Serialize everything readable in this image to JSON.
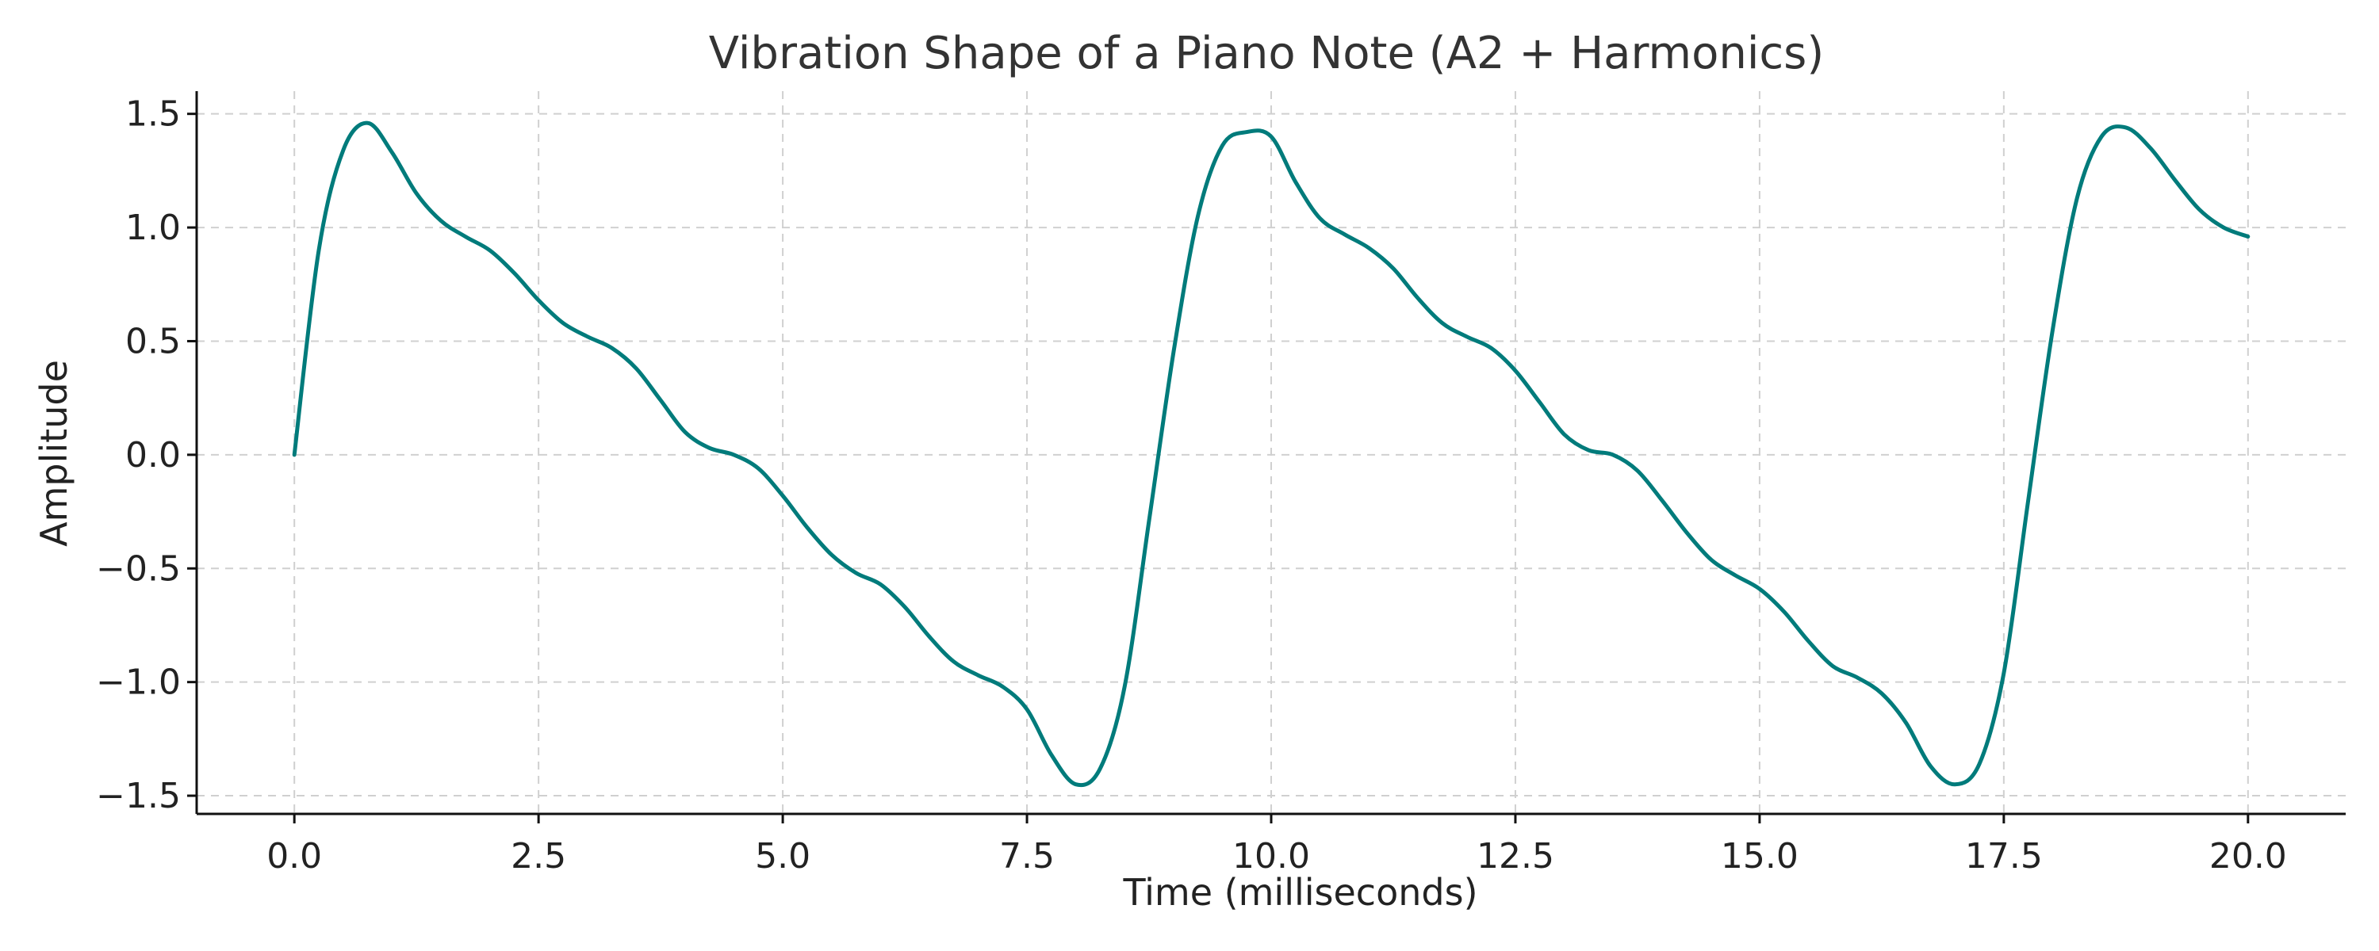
{
  "chart_data": {
    "type": "line",
    "title": "Vibration Shape of a Piano Note (A2 + Harmonics)",
    "xlabel": "Time (milliseconds)",
    "ylabel": "Amplitude",
    "xlim": [
      -1.0,
      21.0
    ],
    "ylim": [
      -1.58,
      1.6
    ],
    "xticks": [
      0.0,
      2.5,
      5.0,
      7.5,
      10.0,
      12.5,
      15.0,
      17.5,
      20.0
    ],
    "xtick_labels": [
      "0.0",
      "2.5",
      "5.0",
      "7.5",
      "10.0",
      "12.5",
      "15.0",
      "17.5",
      "20.0"
    ],
    "yticks": [
      -1.5,
      -1.0,
      -0.5,
      0.0,
      0.5,
      1.0,
      1.5
    ],
    "ytick_labels": [
      "−1.5",
      "−1.0",
      "−0.5",
      "0.0",
      "0.5",
      "1.0",
      "1.5"
    ],
    "grid": true,
    "color": "#007b7b",
    "series": [
      {
        "x": [
          0.0,
          0.25,
          0.5,
          0.75,
          1.0,
          1.25,
          1.5,
          1.75,
          2.0,
          2.25,
          2.5,
          2.75,
          3.0,
          3.25,
          3.5,
          3.75,
          4.0,
          4.25,
          4.5,
          4.75,
          5.0,
          5.25,
          5.5,
          5.75,
          6.0,
          6.25,
          6.5,
          6.75,
          7.0,
          7.25,
          7.5,
          7.75,
          8.0,
          8.25,
          8.5,
          8.75,
          9.0,
          9.25,
          9.5,
          9.75,
          10.0,
          10.25,
          10.5,
          10.75,
          11.0,
          11.25,
          11.5,
          11.75,
          12.0,
          12.25,
          12.5,
          12.75,
          13.0,
          13.25,
          13.5,
          13.75,
          14.0,
          14.25,
          14.5,
          14.75,
          15.0,
          15.25,
          15.5,
          15.75,
          16.0,
          16.25,
          16.5,
          16.75,
          17.0,
          17.25,
          17.5,
          17.75,
          18.0,
          18.25,
          18.5,
          18.75,
          19.0,
          19.25,
          19.5,
          19.75,
          20.0
        ],
        "y": [
          0.0,
          0.9,
          1.34,
          1.46,
          1.33,
          1.15,
          1.03,
          0.96,
          0.9,
          0.8,
          0.68,
          0.58,
          0.52,
          0.47,
          0.38,
          0.24,
          0.1,
          0.03,
          0.0,
          -0.06,
          -0.18,
          -0.32,
          -0.44,
          -0.52,
          -0.57,
          -0.67,
          -0.8,
          -0.91,
          -0.97,
          -1.02,
          -1.12,
          -1.32,
          -1.45,
          -1.38,
          -1.02,
          -0.29,
          0.45,
          1.05,
          1.36,
          1.42,
          1.4,
          1.2,
          1.04,
          0.97,
          0.91,
          0.82,
          0.69,
          0.58,
          0.52,
          0.47,
          0.37,
          0.23,
          0.09,
          0.02,
          0.0,
          -0.07,
          -0.2,
          -0.34,
          -0.46,
          -0.53,
          -0.59,
          -0.69,
          -0.82,
          -0.93,
          -0.98,
          -1.05,
          -1.18,
          -1.37,
          -1.45,
          -1.36,
          -0.96,
          -0.2,
          0.55,
          1.13,
          1.4,
          1.44,
          1.35,
          1.21,
          1.08,
          1.0,
          0.96
        ]
      }
    ]
  }
}
